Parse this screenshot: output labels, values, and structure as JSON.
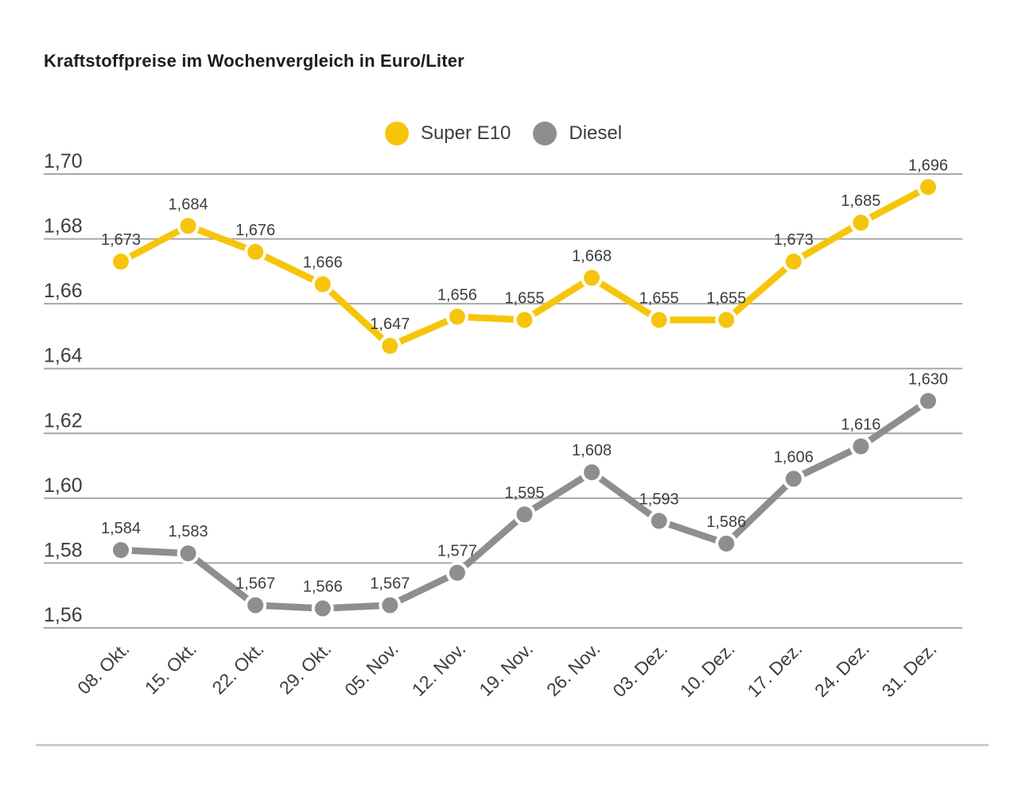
{
  "page": {
    "title": "Kraftstoffpreise im Wochenvergleich in Euro/Liter"
  },
  "chart_data": {
    "type": "line",
    "title": "Kraftstoffpreise im Wochenvergleich in Euro/Liter",
    "unit": "Euro/Liter",
    "categories": [
      "08. Okt.",
      "15. Okt.",
      "22. Okt.",
      "29. Okt.",
      "05. Nov.",
      "12. Nov.",
      "19. Nov.",
      "26. Nov.",
      "03. Dez.",
      "10. Dez.",
      "17. Dez.",
      "24. Dez.",
      "31. Dez."
    ],
    "series": [
      {
        "name": "Super E10",
        "color": "#F6C50B",
        "values": [
          1.673,
          1.684,
          1.676,
          1.666,
          1.647,
          1.656,
          1.655,
          1.668,
          1.655,
          1.655,
          1.673,
          1.685,
          1.696
        ]
      },
      {
        "name": "Diesel",
        "color": "#8E8E8E",
        "values": [
          1.584,
          1.583,
          1.567,
          1.566,
          1.567,
          1.577,
          1.595,
          1.608,
          1.593,
          1.586,
          1.606,
          1.616,
          1.63
        ]
      }
    ],
    "yticks": [
      1.7,
      1.68,
      1.66,
      1.64,
      1.62,
      1.6,
      1.58,
      1.56
    ],
    "ylim": [
      1.56,
      1.7
    ],
    "grid": true,
    "legend_position": "top-center",
    "decimal_separator": ",",
    "data_labels": true
  },
  "colors": {
    "title_text": "#1d1d1b",
    "label_text": "#3d3d3d",
    "gridline": "#a8a8a8",
    "divider": "#cbcbcb",
    "background": "#ffffff"
  }
}
